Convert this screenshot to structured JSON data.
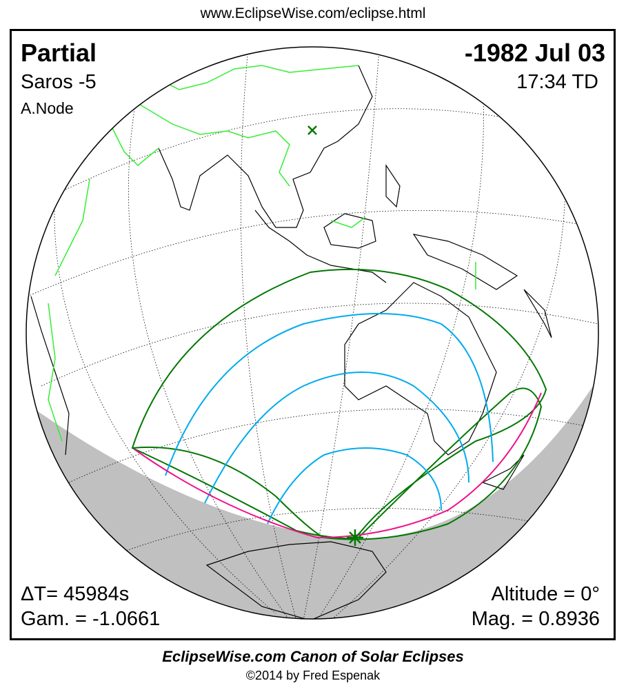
{
  "header": {
    "url": "www.EclipseWise.com/eclipse.html"
  },
  "eclipse": {
    "type": "Partial",
    "date": "-1982 Jul 03",
    "saros": "Saros  -5",
    "time": "17:34 TD",
    "node": "A.Node",
    "delta_t": "ΔT=  45984s",
    "gamma": "Gam. = -1.0661",
    "altitude": "Altitude =  0°",
    "magnitude": "Mag. = 0.8936"
  },
  "colors": {
    "night": "#c0c0c0",
    "borders": "#33ee33",
    "penumbra_limits": "#007700",
    "magnitude_curves": "#00aaee",
    "max_eclipse_curve": "#ee1188"
  },
  "footer": {
    "title": "EclipseWise.com Canon of Solar Eclipses",
    "copyright": "©2014 by Fred Espenak"
  }
}
